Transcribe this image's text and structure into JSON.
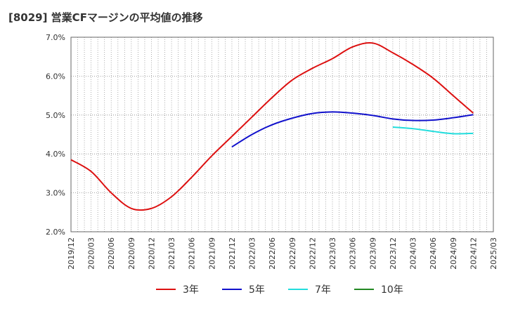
{
  "title": "[8029]  営業CFマージンの平均値の推移",
  "chart_data": {
    "type": "line",
    "ylim": [
      2.0,
      7.0
    ],
    "yticks": [
      "2.0%",
      "3.0%",
      "4.0%",
      "5.0%",
      "6.0%",
      "7.0%"
    ],
    "yvalues": [
      2.0,
      3.0,
      4.0,
      5.0,
      6.0,
      7.0
    ],
    "x_start": "2019/12",
    "x_end": "2025/03",
    "xticks": [
      "2019/12",
      "2020/03",
      "2020/06",
      "2020/09",
      "2020/12",
      "2021/03",
      "2021/06",
      "2021/09",
      "2021/12",
      "2022/03",
      "2022/06",
      "2022/09",
      "2022/12",
      "2023/03",
      "2023/06",
      "2023/09",
      "2023/12",
      "2024/03",
      "2024/06",
      "2024/09",
      "2024/12",
      "2025/03"
    ],
    "grid": true,
    "legend_position": "bottom",
    "series": [
      {
        "name": "3年",
        "color": "#dd1111",
        "x": [
          "2019/12",
          "2020/03",
          "2020/06",
          "2020/09",
          "2020/12",
          "2021/03",
          "2021/06",
          "2021/09",
          "2021/12",
          "2022/03",
          "2022/06",
          "2022/09",
          "2022/12",
          "2023/03",
          "2023/06",
          "2023/09",
          "2023/12",
          "2024/03",
          "2024/06",
          "2024/09",
          "2024/12"
        ],
        "y": [
          3.85,
          3.55,
          3.0,
          2.6,
          2.6,
          2.9,
          3.4,
          3.95,
          4.45,
          4.95,
          5.45,
          5.9,
          6.2,
          6.45,
          6.75,
          6.85,
          6.6,
          6.3,
          5.95,
          5.5,
          5.05
        ]
      },
      {
        "name": "5年",
        "color": "#1111cc",
        "x": [
          "2021/12",
          "2022/03",
          "2022/06",
          "2022/09",
          "2022/12",
          "2023/03",
          "2023/06",
          "2023/09",
          "2023/12",
          "2024/03",
          "2024/06",
          "2024/09",
          "2024/12"
        ],
        "y": [
          4.18,
          4.5,
          4.75,
          4.92,
          5.04,
          5.08,
          5.05,
          4.99,
          4.9,
          4.86,
          4.87,
          4.93,
          5.01
        ]
      },
      {
        "name": "7年",
        "color": "#22dddd",
        "x": [
          "2023/12",
          "2024/03",
          "2024/06",
          "2024/09",
          "2024/12"
        ],
        "y": [
          4.69,
          4.65,
          4.58,
          4.52,
          4.53
        ]
      },
      {
        "name": "10年",
        "color": "#228822",
        "x": [],
        "y": []
      }
    ]
  }
}
